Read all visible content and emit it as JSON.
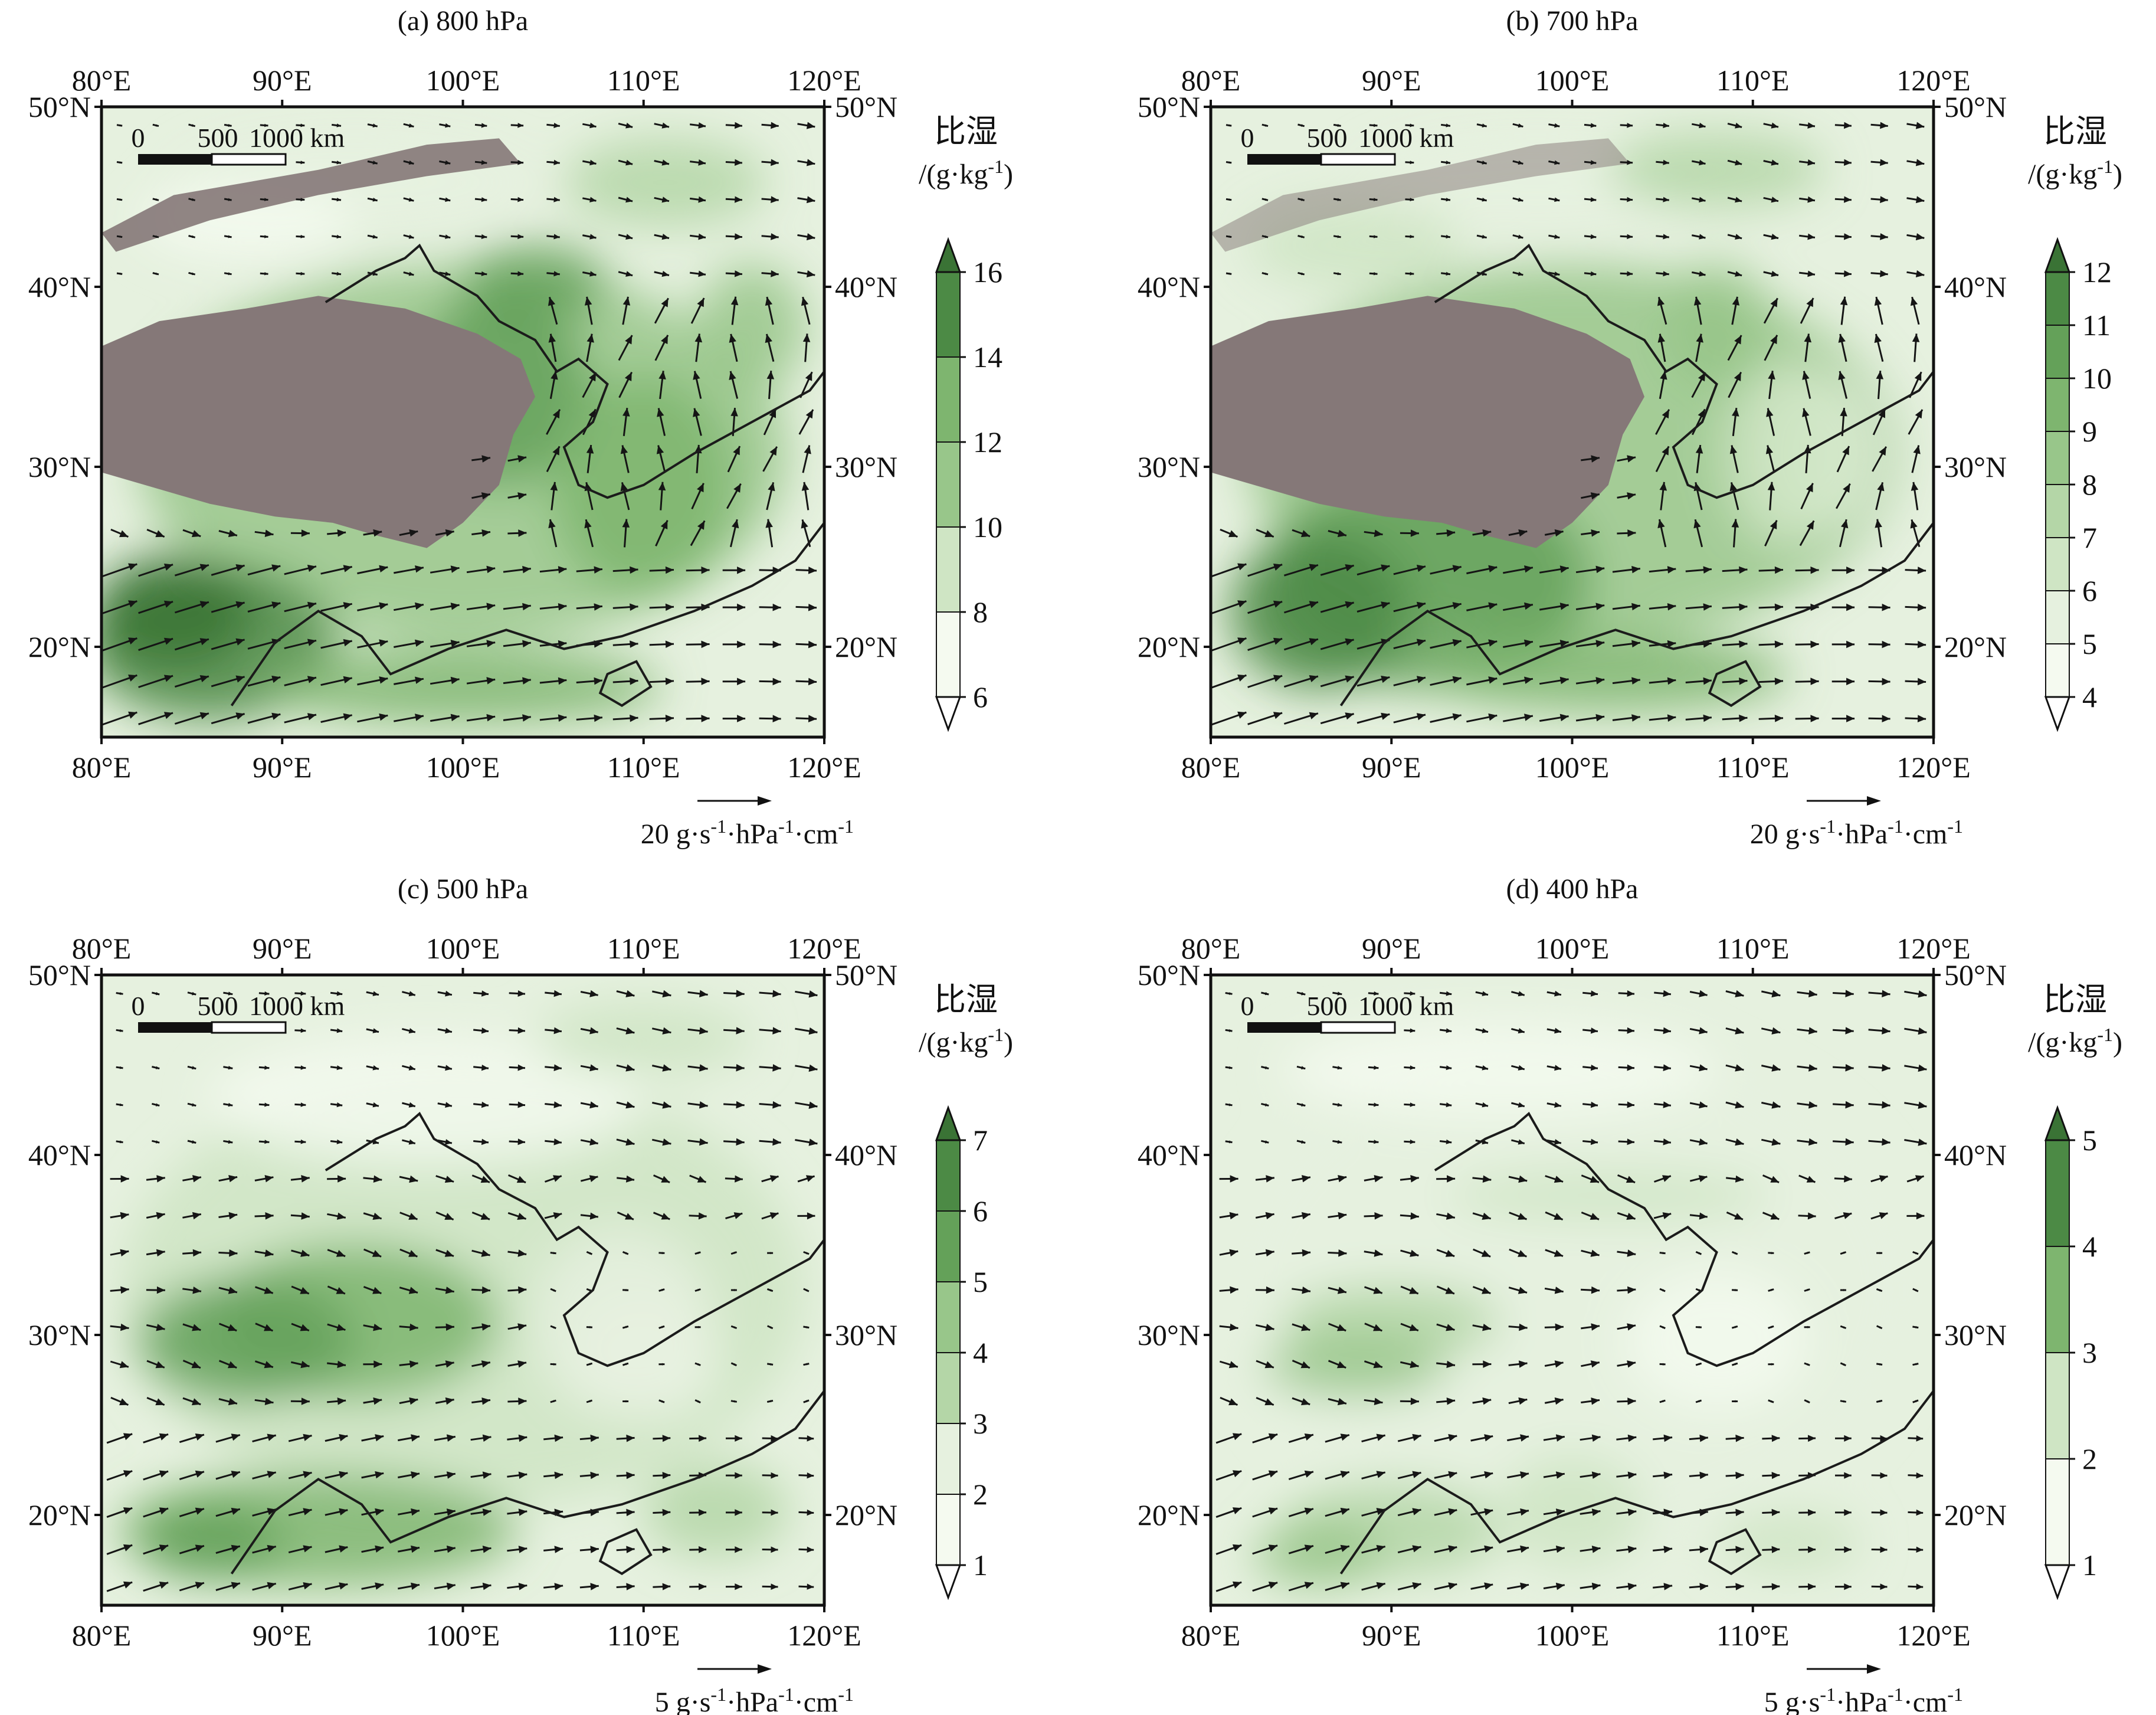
{
  "colors": {
    "plateau": "#857878",
    "plateau_snow": "#ececec",
    "boundary": "#1b1b1b",
    "arrow": "#151515",
    "green_ramp": [
      "#f5faf0",
      "#e6f1df",
      "#cfe5c4",
      "#b4d6a7",
      "#98c68a",
      "#7eb56f",
      "#64a159",
      "#4c8a45",
      "#3a7335"
    ]
  },
  "panels": [
    {
      "title": "(a) 800 hPa",
      "lon_ticks": [
        "80°E",
        "90°E",
        "100°E",
        "110°E",
        "120°E"
      ],
      "lat_ticks": [
        "50°N",
        "40°N",
        "30°N",
        "20°N"
      ],
      "scale_bar": {
        "labels": [
          "0",
          "500",
          "1000 km"
        ]
      },
      "colorbar": {
        "title_cn": "比湿",
        "unit": "/(g·kg",
        "unit_sup": "-1",
        "unit_end": ")",
        "ticks": [
          "6",
          "8",
          "10",
          "12",
          "14",
          "16"
        ]
      },
      "ref_vector": {
        "value": "20",
        "unit_parts": [
          "g·s",
          "-1",
          "·hPa",
          "-1",
          "·cm",
          "-1"
        ]
      },
      "has_plateau": true,
      "field_level": 0
    },
    {
      "title": "(b) 700 hPa",
      "lon_ticks": [
        "80°E",
        "90°E",
        "100°E",
        "110°E",
        "120°E"
      ],
      "lat_ticks": [
        "50°N",
        "40°N",
        "30°N",
        "20°N"
      ],
      "scale_bar": {
        "labels": [
          "0",
          "500",
          "1000 km"
        ]
      },
      "colorbar": {
        "title_cn": "比湿",
        "unit": "/(g·kg",
        "unit_sup": "-1",
        "unit_end": ")",
        "ticks": [
          "4",
          "5",
          "6",
          "7",
          "8",
          "9",
          "10",
          "11",
          "12"
        ]
      },
      "ref_vector": {
        "value": "20",
        "unit_parts": [
          "g·s",
          "-1",
          "·hPa",
          "-1",
          "·cm",
          "-1"
        ]
      },
      "has_plateau": true,
      "field_level": 1
    },
    {
      "title": "(c) 500 hPa",
      "lon_ticks": [
        "80°E",
        "90°E",
        "100°E",
        "110°E",
        "120°E"
      ],
      "lat_ticks": [
        "50°N",
        "40°N",
        "30°N",
        "20°N"
      ],
      "scale_bar": {
        "labels": [
          "0",
          "500",
          "1000 km"
        ]
      },
      "colorbar": {
        "title_cn": "比湿",
        "unit": "/(g·kg",
        "unit_sup": "-1",
        "unit_end": ")",
        "ticks": [
          "1",
          "2",
          "3",
          "4",
          "5",
          "6",
          "7"
        ]
      },
      "ref_vector": {
        "value": "5",
        "unit_parts": [
          "g·s",
          "-1",
          "·hPa",
          "-1",
          "·cm",
          "-1"
        ]
      },
      "has_plateau": false,
      "field_level": 2
    },
    {
      "title": "(d) 400 hPa",
      "lon_ticks": [
        "80°E",
        "90°E",
        "100°E",
        "110°E",
        "120°E"
      ],
      "lat_ticks": [
        "50°N",
        "40°N",
        "30°N",
        "20°N"
      ],
      "scale_bar": {
        "labels": [
          "0",
          "500",
          "1000 km"
        ]
      },
      "colorbar": {
        "title_cn": "比湿",
        "unit": "/(g·kg",
        "unit_sup": "-1",
        "unit_end": ")",
        "ticks": [
          "1",
          "2",
          "3",
          "4",
          "5"
        ]
      },
      "ref_vector": {
        "value": "5",
        "unit_parts": [
          "g·s",
          "-1",
          "·hPa",
          "-1",
          "·cm",
          "-1"
        ]
      },
      "has_plateau": false,
      "field_level": 3
    }
  ]
}
